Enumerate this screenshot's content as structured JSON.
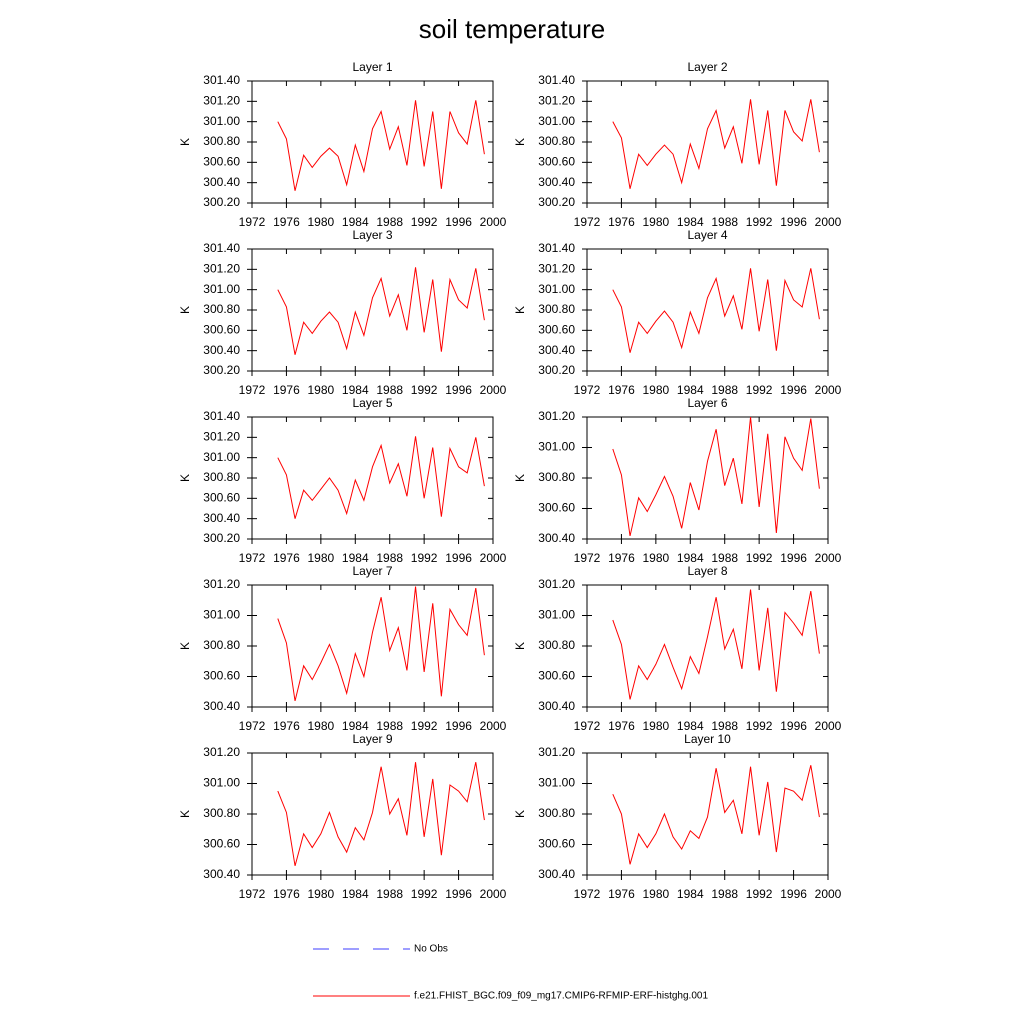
{
  "title": "soil temperature",
  "legend": [
    {
      "name": "No Obs",
      "color": "#3c3cff",
      "style": "dashed"
    },
    {
      "name": "f.e21.FHIST_BGC.f09_f09_mg17.CMIP6-RFMIP-ERF-histghg.001",
      "color": "#ff0000",
      "style": "solid"
    }
  ],
  "chart_data": [
    {
      "type": "line",
      "title": "Layer 1",
      "ylabel": "K",
      "x": [
        1975,
        1976,
        1977,
        1978,
        1979,
        1980,
        1981,
        1982,
        1983,
        1984,
        1985,
        1986,
        1987,
        1988,
        1989,
        1990,
        1991,
        1992,
        1993,
        1994,
        1995,
        1996,
        1997,
        1998,
        1999
      ],
      "series": [
        {
          "color": "#ff0000",
          "values": [
            301.0,
            300.83,
            300.32,
            300.67,
            300.55,
            300.66,
            300.74,
            300.66,
            300.38,
            300.77,
            300.51,
            300.93,
            301.1,
            300.73,
            300.95,
            300.57,
            301.21,
            300.56,
            301.1,
            300.34,
            301.1,
            300.89,
            300.78,
            301.21,
            300.68
          ]
        }
      ],
      "xlim": [
        1972,
        2000
      ],
      "xticks": [
        1972,
        1976,
        1980,
        1984,
        1988,
        1992,
        1996,
        2000
      ],
      "ylim": [
        300.2,
        301.4
      ],
      "yticks": [
        {
          "value": 300.2,
          "label": "300.20"
        },
        {
          "value": 300.4,
          "label": "300.40"
        },
        {
          "value": 300.6,
          "label": "300.60"
        },
        {
          "value": 300.8,
          "label": "300.80"
        },
        {
          "value": 301.0,
          "label": "301.00"
        },
        {
          "value": 301.2,
          "label": "301.20"
        },
        {
          "value": 301.4,
          "label": "301.40"
        }
      ]
    },
    {
      "type": "line",
      "title": "Layer 2",
      "ylabel": "K",
      "x": [
        1975,
        1976,
        1977,
        1978,
        1979,
        1980,
        1981,
        1982,
        1983,
        1984,
        1985,
        1986,
        1987,
        1988,
        1989,
        1990,
        1991,
        1992,
        1993,
        1994,
        1995,
        1996,
        1997,
        1998,
        1999
      ],
      "series": [
        {
          "color": "#ff0000",
          "values": [
            301.0,
            300.84,
            300.34,
            300.68,
            300.57,
            300.68,
            300.77,
            300.68,
            300.4,
            300.78,
            300.54,
            300.93,
            301.11,
            300.74,
            300.95,
            300.59,
            301.22,
            300.58,
            301.11,
            300.37,
            301.11,
            300.9,
            300.81,
            301.22,
            300.7
          ]
        }
      ],
      "xlim": [
        1972,
        2000
      ],
      "xticks": [
        1972,
        1976,
        1980,
        1984,
        1988,
        1992,
        1996,
        2000
      ],
      "ylim": [
        300.2,
        301.4
      ],
      "yticks": [
        {
          "value": 300.2,
          "label": "300.20"
        },
        {
          "value": 300.4,
          "label": "300.40"
        },
        {
          "value": 300.6,
          "label": "300.60"
        },
        {
          "value": 300.8,
          "label": "300.80"
        },
        {
          "value": 301.0,
          "label": "301.00"
        },
        {
          "value": 301.2,
          "label": "301.20"
        },
        {
          "value": 301.4,
          "label": "301.40"
        }
      ]
    },
    {
      "type": "line",
      "title": "Layer 3",
      "ylabel": "K",
      "x": [
        1975,
        1976,
        1977,
        1978,
        1979,
        1980,
        1981,
        1982,
        1983,
        1984,
        1985,
        1986,
        1987,
        1988,
        1989,
        1990,
        1991,
        1992,
        1993,
        1994,
        1995,
        1996,
        1997,
        1998,
        1999
      ],
      "series": [
        {
          "color": "#ff0000",
          "values": [
            301.0,
            300.83,
            300.36,
            300.68,
            300.57,
            300.69,
            300.78,
            300.68,
            300.42,
            300.78,
            300.55,
            300.92,
            301.11,
            300.74,
            300.95,
            300.6,
            301.22,
            300.58,
            301.1,
            300.39,
            301.1,
            300.9,
            300.82,
            301.21,
            300.7
          ]
        }
      ],
      "xlim": [
        1972,
        2000
      ],
      "xticks": [
        1972,
        1976,
        1980,
        1984,
        1988,
        1992,
        1996,
        2000
      ],
      "ylim": [
        300.2,
        301.4
      ],
      "yticks": [
        {
          "value": 300.2,
          "label": "300.20"
        },
        {
          "value": 300.4,
          "label": "300.40"
        },
        {
          "value": 300.6,
          "label": "300.60"
        },
        {
          "value": 300.8,
          "label": "300.80"
        },
        {
          "value": 301.0,
          "label": "301.00"
        },
        {
          "value": 301.2,
          "label": "301.20"
        },
        {
          "value": 301.4,
          "label": "301.40"
        }
      ]
    },
    {
      "type": "line",
      "title": "Layer 4",
      "ylabel": "K",
      "x": [
        1975,
        1976,
        1977,
        1978,
        1979,
        1980,
        1981,
        1982,
        1983,
        1984,
        1985,
        1986,
        1987,
        1988,
        1989,
        1990,
        1991,
        1992,
        1993,
        1994,
        1995,
        1996,
        1997,
        1998,
        1999
      ],
      "series": [
        {
          "color": "#ff0000",
          "values": [
            301.0,
            300.83,
            300.38,
            300.68,
            300.57,
            300.69,
            300.79,
            300.68,
            300.43,
            300.78,
            300.57,
            300.92,
            301.11,
            300.74,
            300.94,
            300.61,
            301.21,
            300.59,
            301.1,
            300.4,
            301.09,
            300.9,
            300.83,
            301.21,
            300.71
          ]
        }
      ],
      "xlim": [
        1972,
        2000
      ],
      "xticks": [
        1972,
        1976,
        1980,
        1984,
        1988,
        1992,
        1996,
        2000
      ],
      "ylim": [
        300.2,
        301.4
      ],
      "yticks": [
        {
          "value": 300.2,
          "label": "300.20"
        },
        {
          "value": 300.4,
          "label": "300.40"
        },
        {
          "value": 300.6,
          "label": "300.60"
        },
        {
          "value": 300.8,
          "label": "300.80"
        },
        {
          "value": 301.0,
          "label": "301.00"
        },
        {
          "value": 301.2,
          "label": "301.20"
        },
        {
          "value": 301.4,
          "label": "301.40"
        }
      ]
    },
    {
      "type": "line",
      "title": "Layer 5",
      "ylabel": "K",
      "x": [
        1975,
        1976,
        1977,
        1978,
        1979,
        1980,
        1981,
        1982,
        1983,
        1984,
        1985,
        1986,
        1987,
        1988,
        1989,
        1990,
        1991,
        1992,
        1993,
        1994,
        1995,
        1996,
        1997,
        1998,
        1999
      ],
      "series": [
        {
          "color": "#ff0000",
          "values": [
            301.0,
            300.83,
            300.4,
            300.68,
            300.58,
            300.69,
            300.8,
            300.68,
            300.45,
            300.78,
            300.58,
            300.91,
            301.12,
            300.75,
            300.94,
            300.62,
            301.21,
            300.6,
            301.1,
            300.42,
            301.09,
            300.91,
            300.85,
            301.2,
            300.72
          ]
        }
      ],
      "xlim": [
        1972,
        2000
      ],
      "xticks": [
        1972,
        1976,
        1980,
        1984,
        1988,
        1992,
        1996,
        2000
      ],
      "ylim": [
        300.2,
        301.4
      ],
      "yticks": [
        {
          "value": 300.2,
          "label": "300.20"
        },
        {
          "value": 300.4,
          "label": "300.40"
        },
        {
          "value": 300.6,
          "label": "300.60"
        },
        {
          "value": 300.8,
          "label": "300.80"
        },
        {
          "value": 301.0,
          "label": "301.00"
        },
        {
          "value": 301.2,
          "label": "301.20"
        },
        {
          "value": 301.4,
          "label": "301.40"
        }
      ]
    },
    {
      "type": "line",
      "title": "Layer 6",
      "ylabel": "K",
      "x": [
        1975,
        1976,
        1977,
        1978,
        1979,
        1980,
        1981,
        1982,
        1983,
        1984,
        1985,
        1986,
        1987,
        1988,
        1989,
        1990,
        1991,
        1992,
        1993,
        1994,
        1995,
        1996,
        1997,
        1998,
        1999
      ],
      "series": [
        {
          "color": "#ff0000",
          "values": [
            300.99,
            300.82,
            300.42,
            300.67,
            300.58,
            300.69,
            300.81,
            300.68,
            300.47,
            300.77,
            300.59,
            300.91,
            301.12,
            300.75,
            300.93,
            300.63,
            301.2,
            300.61,
            301.09,
            300.44,
            301.07,
            300.93,
            300.85,
            301.19,
            300.73
          ]
        }
      ],
      "xlim": [
        1972,
        2000
      ],
      "xticks": [
        1972,
        1976,
        1980,
        1984,
        1988,
        1992,
        1996,
        2000
      ],
      "ylim": [
        300.4,
        301.2
      ],
      "yticks": [
        {
          "value": 300.4,
          "label": "300.40"
        },
        {
          "value": 300.6,
          "label": "300.60"
        },
        {
          "value": 300.8,
          "label": "300.80"
        },
        {
          "value": 301.0,
          "label": "301.00"
        },
        {
          "value": 301.2,
          "label": "301.20"
        }
      ]
    },
    {
      "type": "line",
      "title": "Layer 7",
      "ylabel": "K",
      "x": [
        1975,
        1976,
        1977,
        1978,
        1979,
        1980,
        1981,
        1982,
        1983,
        1984,
        1985,
        1986,
        1987,
        1988,
        1989,
        1990,
        1991,
        1992,
        1993,
        1994,
        1995,
        1996,
        1997,
        1998,
        1999
      ],
      "series": [
        {
          "color": "#ff0000",
          "values": [
            300.98,
            300.82,
            300.44,
            300.67,
            300.58,
            300.69,
            300.81,
            300.67,
            300.49,
            300.75,
            300.6,
            300.89,
            301.12,
            300.77,
            300.92,
            300.64,
            301.19,
            300.63,
            301.08,
            300.47,
            301.04,
            300.94,
            300.87,
            301.18,
            300.74
          ]
        }
      ],
      "xlim": [
        1972,
        2000
      ],
      "xticks": [
        1972,
        1976,
        1980,
        1984,
        1988,
        1992,
        1996,
        2000
      ],
      "ylim": [
        300.4,
        301.2
      ],
      "yticks": [
        {
          "value": 300.4,
          "label": "300.40"
        },
        {
          "value": 300.6,
          "label": "300.60"
        },
        {
          "value": 300.8,
          "label": "300.80"
        },
        {
          "value": 301.0,
          "label": "301.00"
        },
        {
          "value": 301.2,
          "label": "301.20"
        }
      ]
    },
    {
      "type": "line",
      "title": "Layer 8",
      "ylabel": "K",
      "x": [
        1975,
        1976,
        1977,
        1978,
        1979,
        1980,
        1981,
        1982,
        1983,
        1984,
        1985,
        1986,
        1987,
        1988,
        1989,
        1990,
        1991,
        1992,
        1993,
        1994,
        1995,
        1996,
        1997,
        1998,
        1999
      ],
      "series": [
        {
          "color": "#ff0000",
          "values": [
            300.97,
            300.81,
            300.45,
            300.67,
            300.58,
            300.68,
            300.81,
            300.66,
            300.52,
            300.73,
            300.62,
            300.86,
            301.12,
            300.78,
            300.91,
            300.65,
            301.17,
            300.64,
            301.05,
            300.5,
            301.02,
            300.95,
            300.87,
            301.16,
            300.75
          ]
        }
      ],
      "xlim": [
        1972,
        2000
      ],
      "xticks": [
        1972,
        1976,
        1980,
        1984,
        1988,
        1992,
        1996,
        2000
      ],
      "ylim": [
        300.4,
        301.2
      ],
      "yticks": [
        {
          "value": 300.4,
          "label": "300.40"
        },
        {
          "value": 300.6,
          "label": "300.60"
        },
        {
          "value": 300.8,
          "label": "300.80"
        },
        {
          "value": 301.0,
          "label": "301.00"
        },
        {
          "value": 301.2,
          "label": "301.20"
        }
      ]
    },
    {
      "type": "line",
      "title": "Layer 9",
      "ylabel": "K",
      "x": [
        1975,
        1976,
        1977,
        1978,
        1979,
        1980,
        1981,
        1982,
        1983,
        1984,
        1985,
        1986,
        1987,
        1988,
        1989,
        1990,
        1991,
        1992,
        1993,
        1994,
        1995,
        1996,
        1997,
        1998,
        1999
      ],
      "series": [
        {
          "color": "#ff0000",
          "values": [
            300.95,
            300.81,
            300.46,
            300.67,
            300.58,
            300.67,
            300.81,
            300.65,
            300.55,
            300.71,
            300.63,
            300.81,
            301.11,
            300.8,
            300.9,
            300.66,
            301.14,
            300.65,
            301.03,
            300.53,
            300.99,
            300.95,
            300.88,
            301.14,
            300.76
          ]
        }
      ],
      "xlim": [
        1972,
        2000
      ],
      "xticks": [
        1972,
        1976,
        1980,
        1984,
        1988,
        1992,
        1996,
        2000
      ],
      "ylim": [
        300.4,
        301.2
      ],
      "yticks": [
        {
          "value": 300.4,
          "label": "300.40"
        },
        {
          "value": 300.6,
          "label": "300.60"
        },
        {
          "value": 300.8,
          "label": "300.80"
        },
        {
          "value": 301.0,
          "label": "301.00"
        },
        {
          "value": 301.2,
          "label": "301.20"
        }
      ]
    },
    {
      "type": "line",
      "title": "Layer 10",
      "ylabel": "K",
      "x": [
        1975,
        1976,
        1977,
        1978,
        1979,
        1980,
        1981,
        1982,
        1983,
        1984,
        1985,
        1986,
        1987,
        1988,
        1989,
        1990,
        1991,
        1992,
        1993,
        1994,
        1995,
        1996,
        1997,
        1998,
        1999
      ],
      "series": [
        {
          "color": "#ff0000",
          "values": [
            300.93,
            300.8,
            300.47,
            300.67,
            300.58,
            300.67,
            300.8,
            300.65,
            300.57,
            300.69,
            300.64,
            300.78,
            301.1,
            300.81,
            300.89,
            300.67,
            301.11,
            300.66,
            301.01,
            300.55,
            300.97,
            300.95,
            300.89,
            301.12,
            300.78
          ]
        }
      ],
      "xlim": [
        1972,
        2000
      ],
      "xticks": [
        1972,
        1976,
        1980,
        1984,
        1988,
        1992,
        1996,
        2000
      ],
      "ylim": [
        300.4,
        301.2
      ],
      "yticks": [
        {
          "value": 300.4,
          "label": "300.40"
        },
        {
          "value": 300.6,
          "label": "300.60"
        },
        {
          "value": 300.8,
          "label": "300.80"
        },
        {
          "value": 301.0,
          "label": "301.00"
        },
        {
          "value": 301.2,
          "label": "301.20"
        }
      ]
    }
  ]
}
